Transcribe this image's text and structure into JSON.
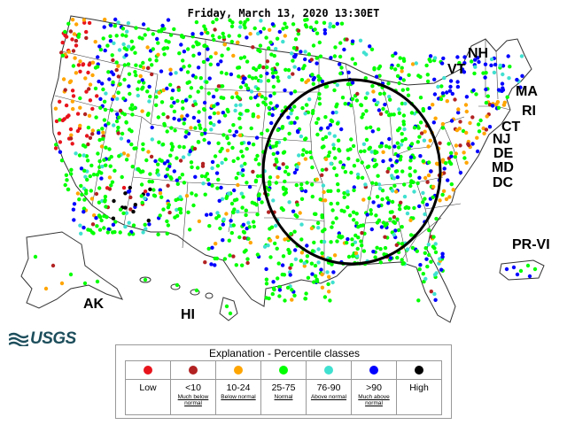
{
  "header": {
    "title": "Friday, March 13, 2020 13:30ET"
  },
  "map": {
    "state_labels": [
      "NH",
      "VT",
      "MA",
      "RI",
      "CT",
      "NJ",
      "DE",
      "MD",
      "DC",
      "PR-VI",
      "AK",
      "HI"
    ],
    "brand": "USGS",
    "colors": {
      "state_fill": "#ffffff",
      "state_border": "#333333",
      "annotation_circle": "#000000"
    }
  },
  "legend": {
    "title": "Explanation - Percentile classes",
    "classes": [
      {
        "label": "Low",
        "sublabel": "",
        "color": "#e8141c"
      },
      {
        "label": "<10",
        "sublabel": "Much below normal",
        "color": "#b22222"
      },
      {
        "label": "10-24",
        "sublabel": "Below normal",
        "color": "#ffa500"
      },
      {
        "label": "25-75",
        "sublabel": "Normal",
        "color": "#00ff00"
      },
      {
        "label": "76-90",
        "sublabel": "Above normal",
        "color": "#40e0d0"
      },
      {
        "label": ">90",
        "sublabel": "Much above normal",
        "color": "#0000ff"
      },
      {
        "label": "High",
        "sublabel": "",
        "color": "#000000"
      }
    ]
  }
}
